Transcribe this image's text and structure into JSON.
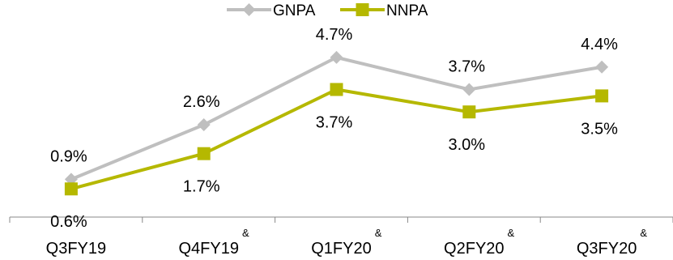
{
  "chart_data": {
    "type": "line",
    "title": "",
    "xlabel": "",
    "ylabel": "",
    "categories": [
      "Q3FY19",
      "Q4FY19",
      "Q1FY20",
      "Q2FY20",
      "Q3FY20"
    ],
    "category_superscripts": [
      "",
      "&",
      "&",
      "&",
      "&"
    ],
    "series": [
      {
        "name": "GNPA",
        "values": [
          0.9,
          2.6,
          4.7,
          3.7,
          4.4
        ],
        "labels": [
          "0.9%",
          "2.6%",
          "4.7%",
          "3.7%",
          "4.4%"
        ],
        "color": "#bfbfbf",
        "marker": "diamond"
      },
      {
        "name": "NNPA",
        "values": [
          0.6,
          1.7,
          3.7,
          3.0,
          3.5
        ],
        "labels": [
          "0.6%",
          "1.7%",
          "3.7%",
          "3.0%",
          "3.5%"
        ],
        "color": "#b5b800",
        "marker": "square"
      }
    ],
    "ylim": [
      0,
      5.4
    ],
    "grid": false,
    "legend": "top-center"
  }
}
